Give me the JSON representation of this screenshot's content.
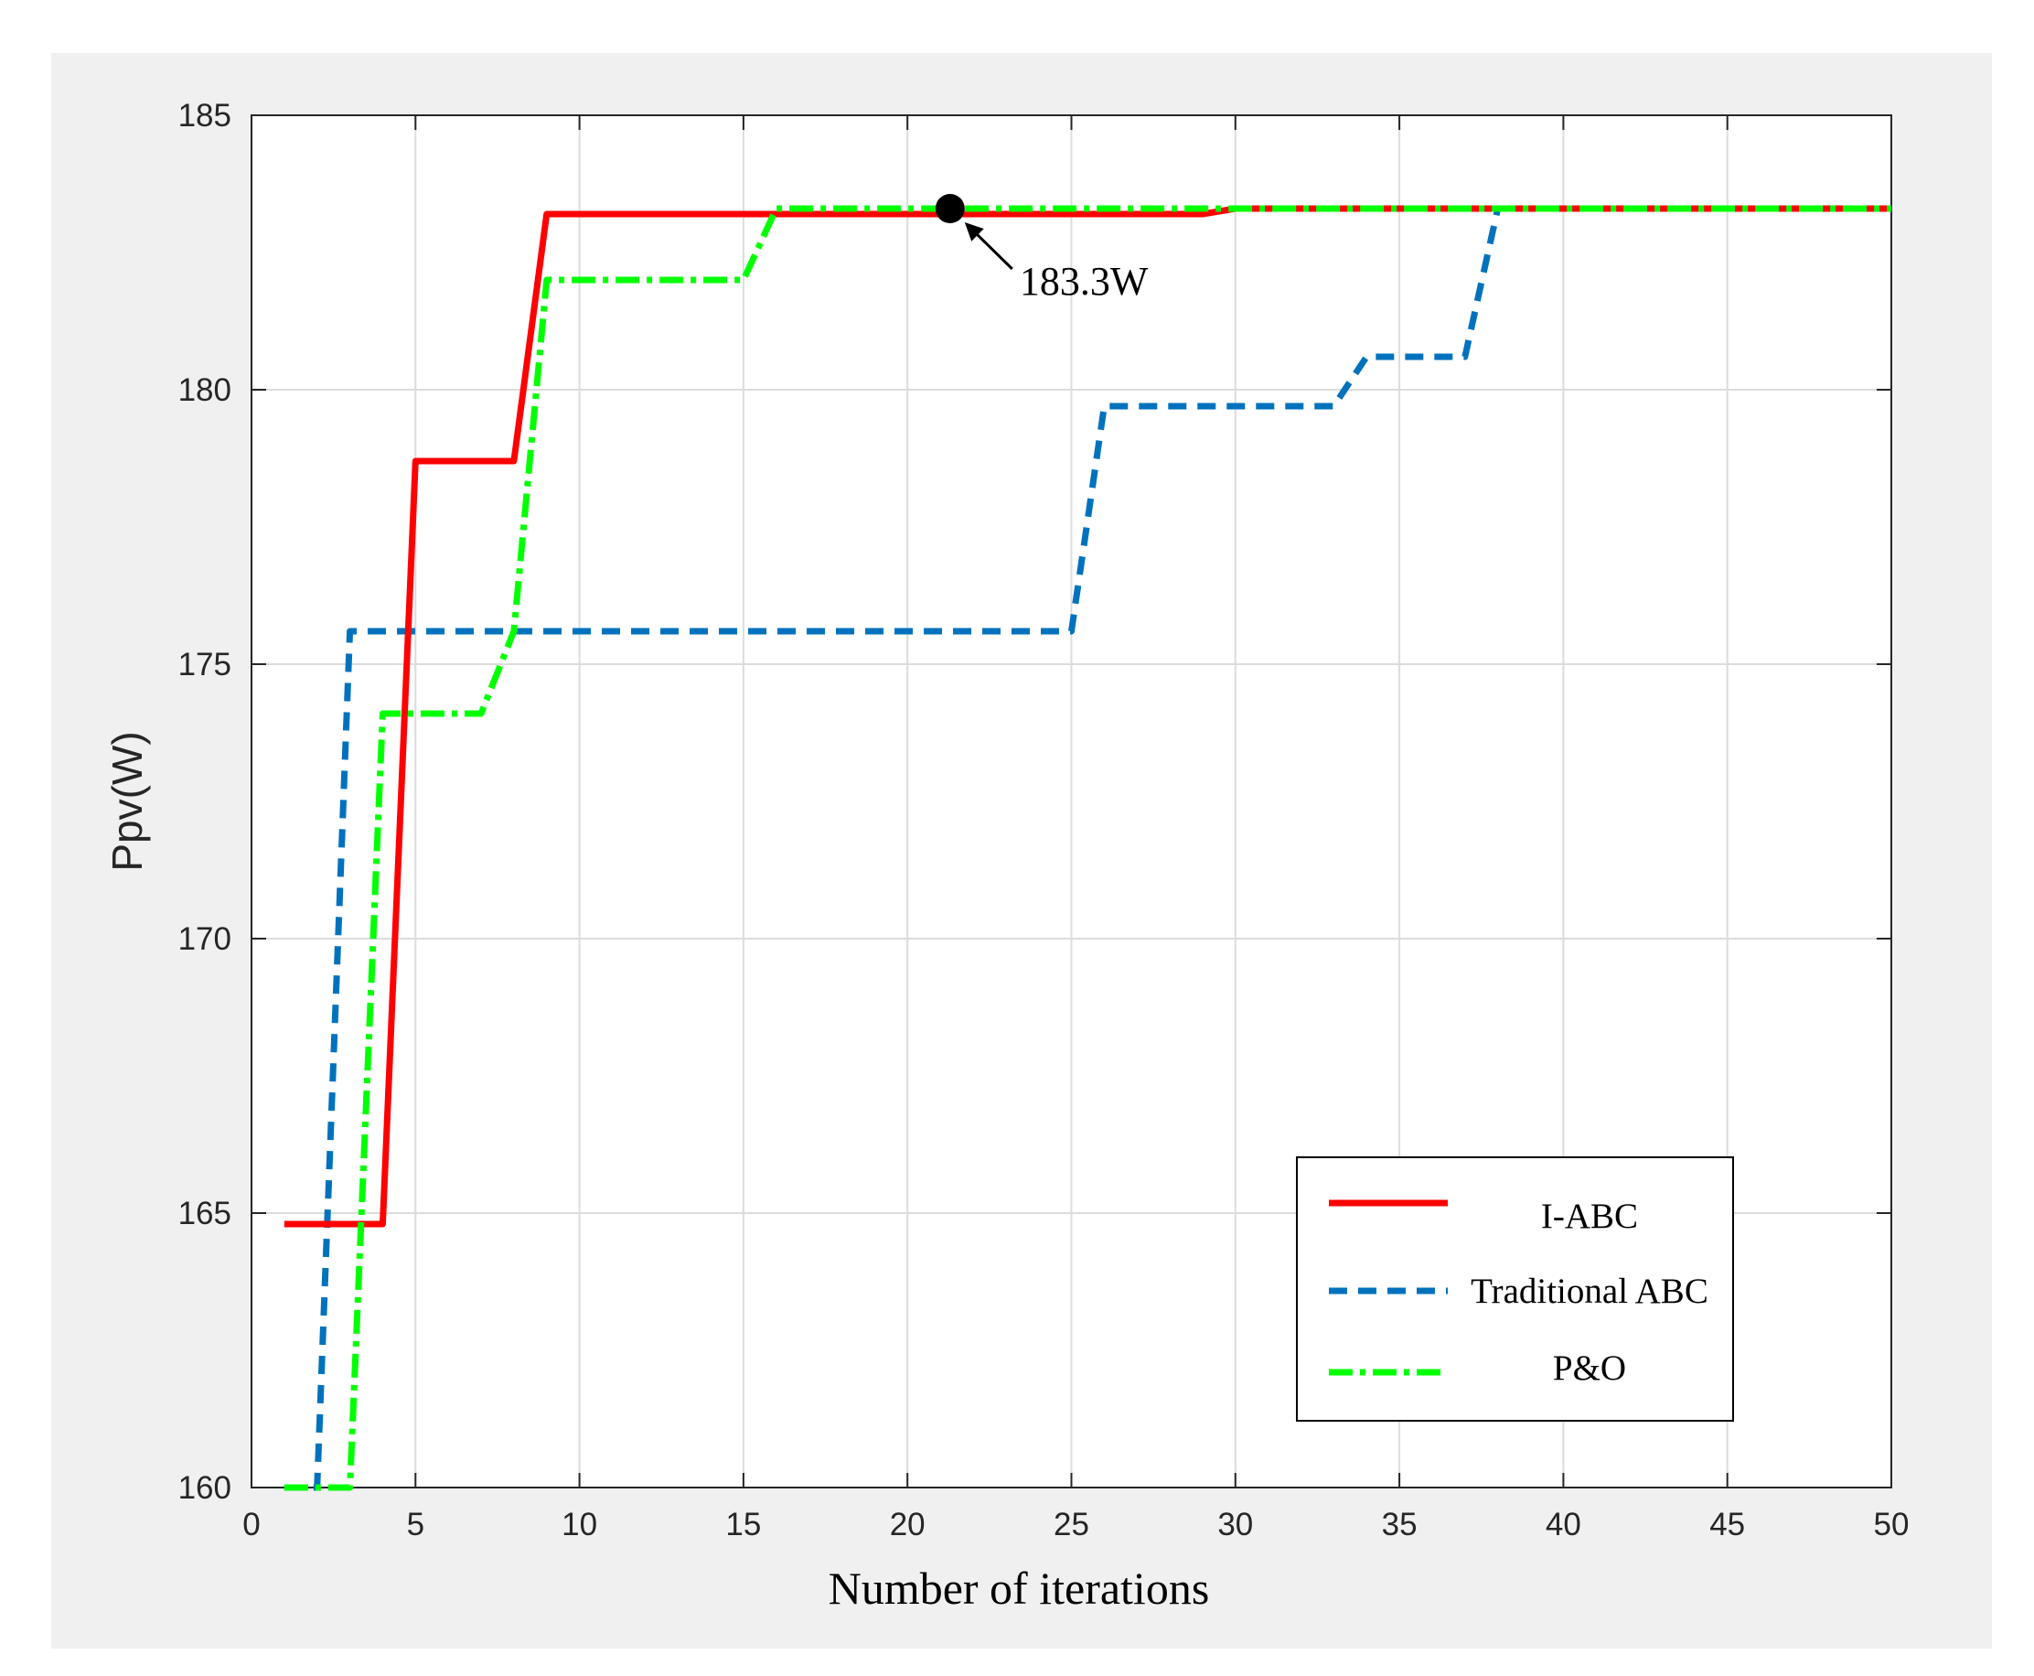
{
  "chart_data": {
    "type": "line",
    "title": "",
    "xlabel": "Number of iterations",
    "ylabel": "Ppv(W)",
    "xlim": [
      0,
      50
    ],
    "ylim": [
      160,
      185
    ],
    "xticks": [
      "0",
      "5",
      "10",
      "15",
      "20",
      "25",
      "30",
      "35",
      "40",
      "45",
      "50"
    ],
    "yticks": [
      "160",
      "165",
      "170",
      "175",
      "180",
      "185"
    ],
    "grid": true,
    "legend_position": "bottom-right",
    "series": [
      {
        "name": "I-ABC",
        "color": "#ff0000",
        "style": "solid",
        "x": [
          1,
          4,
          5,
          8,
          9,
          29,
          30,
          50
        ],
        "y": [
          164.8,
          164.8,
          178.7,
          178.7,
          183.2,
          183.2,
          183.3,
          183.3
        ]
      },
      {
        "name": "Traditional ABC",
        "color": "#0072bd",
        "style": "dashed",
        "x": [
          1,
          2,
          3,
          25,
          26,
          33,
          34,
          37,
          38,
          50
        ],
        "y": [
          160,
          160,
          175.6,
          175.6,
          179.7,
          179.7,
          180.6,
          180.6,
          183.3,
          183.3
        ]
      },
      {
        "name": "P&O",
        "color": "#00ff00",
        "style": "dashdot",
        "x": [
          1,
          3,
          4,
          7,
          8,
          9,
          15,
          16,
          50
        ],
        "y": [
          160,
          160,
          174.1,
          174.1,
          175.6,
          182.0,
          182.0,
          183.3,
          183.3
        ]
      }
    ],
    "annotations": [
      {
        "text": "183.3W",
        "x": 21.3,
        "y": 183.3
      }
    ]
  }
}
